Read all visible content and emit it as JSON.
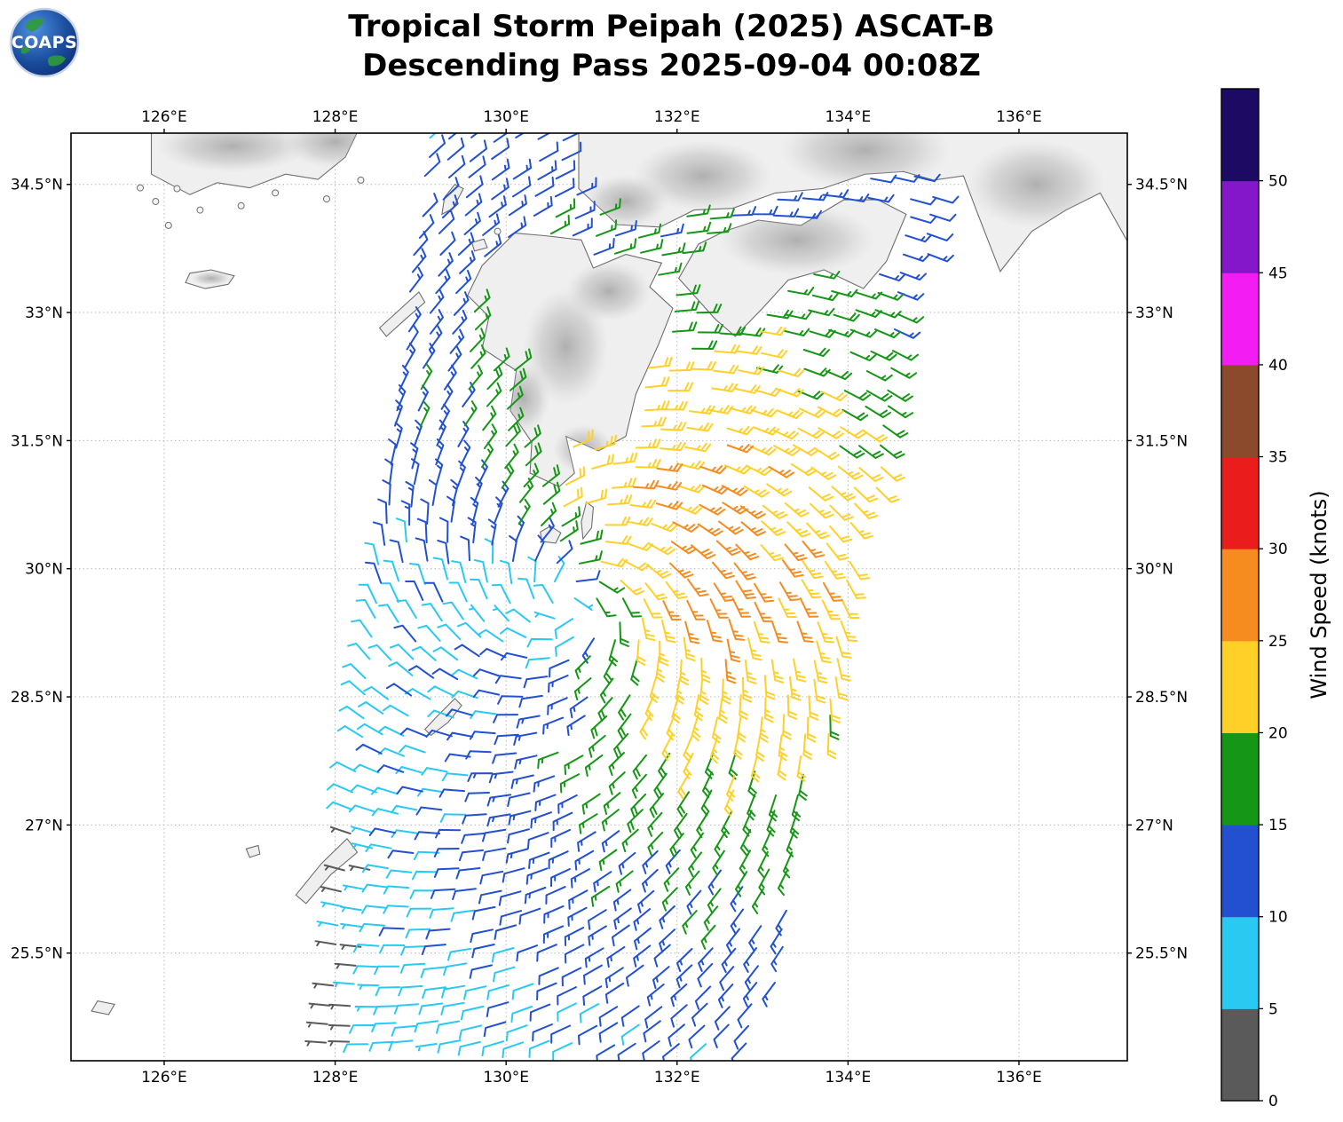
{
  "header": {
    "logo_text": "COAPS",
    "title_line1": "Tropical Storm Peipah (2025) ASCAT-B",
    "title_line2": "Descending Pass 2025-09-04 00:08Z"
  },
  "map": {
    "lon_tick_labels": [
      "126°E",
      "128°E",
      "130°E",
      "132°E",
      "134°E",
      "136°E"
    ],
    "lat_tick_labels": [
      "34.5°N",
      "33°N",
      "31.5°N",
      "30°N",
      "28.5°N",
      "27°N",
      "25.5°N"
    ]
  },
  "colorbar": {
    "label": "Wind Speed (knots)",
    "tick_values": [
      0,
      5,
      10,
      15,
      20,
      25,
      30,
      35,
      40,
      45,
      50
    ],
    "segment_colors": [
      "#5a5a5a",
      "#2ac9f2",
      "#2250d0",
      "#169616",
      "#ffd027",
      "#f68b1f",
      "#ea1c1c",
      "#8a4a2b",
      "#f31df3",
      "#8317c9",
      "#1c0a63"
    ]
  },
  "chart_data": {
    "type": "wind-barb-map",
    "title": "Tropical Storm Peipah (2025) ASCAT-B Descending Pass 2025-09-04 00:08Z",
    "storm_name": "Peipah",
    "storm_year": "2025",
    "satellite": "ASCAT-B",
    "pass_type": "Descending",
    "pass_datetime_utc": "2025-09-04 00:08Z",
    "lon_range_deg_e": [
      124.91,
      137.27
    ],
    "lat_range_deg_n": [
      24.24,
      35.1
    ],
    "lon_gridlines_deg_e": [
      126,
      128,
      130,
      132,
      134,
      136
    ],
    "lat_gridlines_deg_n": [
      34.5,
      33,
      31.5,
      30,
      28.5,
      27,
      25.5
    ],
    "grid_style": "dotted",
    "colorbar_label": "Wind Speed (knots)",
    "colorbar_range_knots": [
      0,
      55
    ],
    "colorbar_step_knots": 5,
    "circulation": "cyclonic counterclockwise spiral",
    "storm_center_lon_e": 130.75,
    "storm_center_lat_n": 29.62,
    "max_wind_band_knots": [
      25,
      30
    ],
    "max_wind_band_location": "east and northeast of center near 132-134E",
    "min_wind_region": "west and southwest of center (5-15 kt) and inner core (10-15 kt)",
    "wind_model": {
      "center_lon": 130.75,
      "center_lat": 29.62,
      "base_min_kt": 6,
      "base_amp_kt": 12,
      "radius_peak_deg": 1.8,
      "asym_amp_kt": 9,
      "asym_dir_deg": 20,
      "inflow_deg": 25,
      "swath_left_lon_at_25n": 127.95,
      "swath_left_slope": 0.115,
      "swath_right_lon_at_25n": 133.15,
      "swath_right_slope": 0.205,
      "barb_spacing_lat_deg": 0.225,
      "barb_spacing_lon_deg": 0.26
    }
  }
}
